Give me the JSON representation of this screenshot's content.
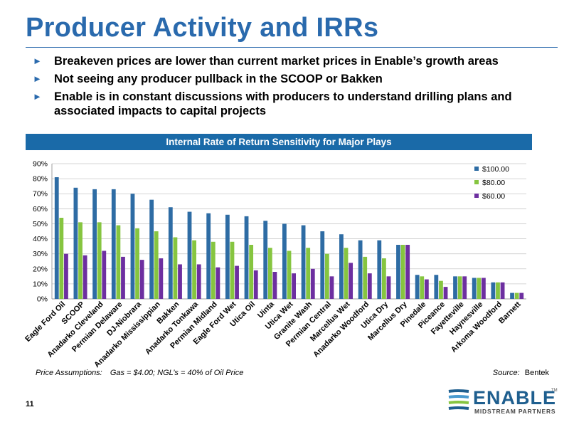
{
  "slide": {
    "title": "Producer Activity and IRRs",
    "bullets": [
      "Breakeven prices are lower than current market prices in Enable’s growth areas",
      "Not seeing any producer pullback in the SCOOP or Bakken",
      "Enable is in constant discussions with producers to understand drilling plans and associated impacts to capital projects"
    ],
    "bullet_glyph": "►",
    "banner": "Internal Rate of Return Sensitivity for Major Plays",
    "footer": {
      "price_label": "Price Assumptions:",
      "price_text": "Gas = $4.00; NGL’s = 40% of Oil Price",
      "source_label": "Source:",
      "source_text": "Bentek"
    },
    "page_number": "11",
    "logo": {
      "name": "ENABLE",
      "tagline": "MIDSTREAM PARTNERS",
      "tm": "TM"
    }
  },
  "colors": {
    "accent": "#2a6aad",
    "series_100": "#2e6ca4",
    "series_80": "#86c540",
    "series_60": "#6d2fa0"
  },
  "chart_data": {
    "type": "bar",
    "title": "Internal Rate of Return Sensitivity for Major Plays",
    "ylim": [
      0,
      90
    ],
    "yticks": [
      "0%",
      "10%",
      "20%",
      "30%",
      "40%",
      "50%",
      "60%",
      "70%",
      "80%",
      "90%"
    ],
    "grid": true,
    "legend_position": "top-right",
    "categories": [
      "Eagle Ford Oil",
      "SCOOP",
      "Anadarko Cleveland",
      "Permian Delaware",
      "DJ-Niobrara",
      "Anadarko Mississippian",
      "Bakken",
      "Anadarko Tonkawa",
      "Permian Midland",
      "Eagle Ford Wet",
      "Utica Oil",
      "Uinta",
      "Utica Wet",
      "Granite Wash",
      "Permian Central",
      "Marcellus Wet",
      "Anadarko Woodford",
      "Utica Dry",
      "Marcellus Dry",
      "Pinedale",
      "Piceance",
      "Fayetteville",
      "Haynesville",
      "Arkoma Woodford",
      "Barnett"
    ],
    "series": [
      {
        "name": "$100.00",
        "values": [
          81,
          74,
          73,
          73,
          70,
          66,
          61,
          58,
          57,
          56,
          55,
          52,
          50,
          49,
          45,
          43,
          39,
          39,
          36,
          16,
          16,
          15,
          14,
          11,
          4
        ]
      },
      {
        "name": "$80.00",
        "values": [
          54,
          51,
          51,
          49,
          47,
          45,
          41,
          39,
          38,
          38,
          36,
          34,
          32,
          34,
          30,
          34,
          28,
          27,
          36,
          15,
          12,
          15,
          14,
          11,
          4
        ]
      },
      {
        "name": "$60.00",
        "values": [
          30,
          29,
          32,
          28,
          26,
          27,
          23,
          23,
          21,
          22,
          19,
          18,
          17,
          20,
          15,
          24,
          17,
          15,
          36,
          13,
          8,
          15,
          14,
          11,
          4
        ]
      }
    ]
  }
}
